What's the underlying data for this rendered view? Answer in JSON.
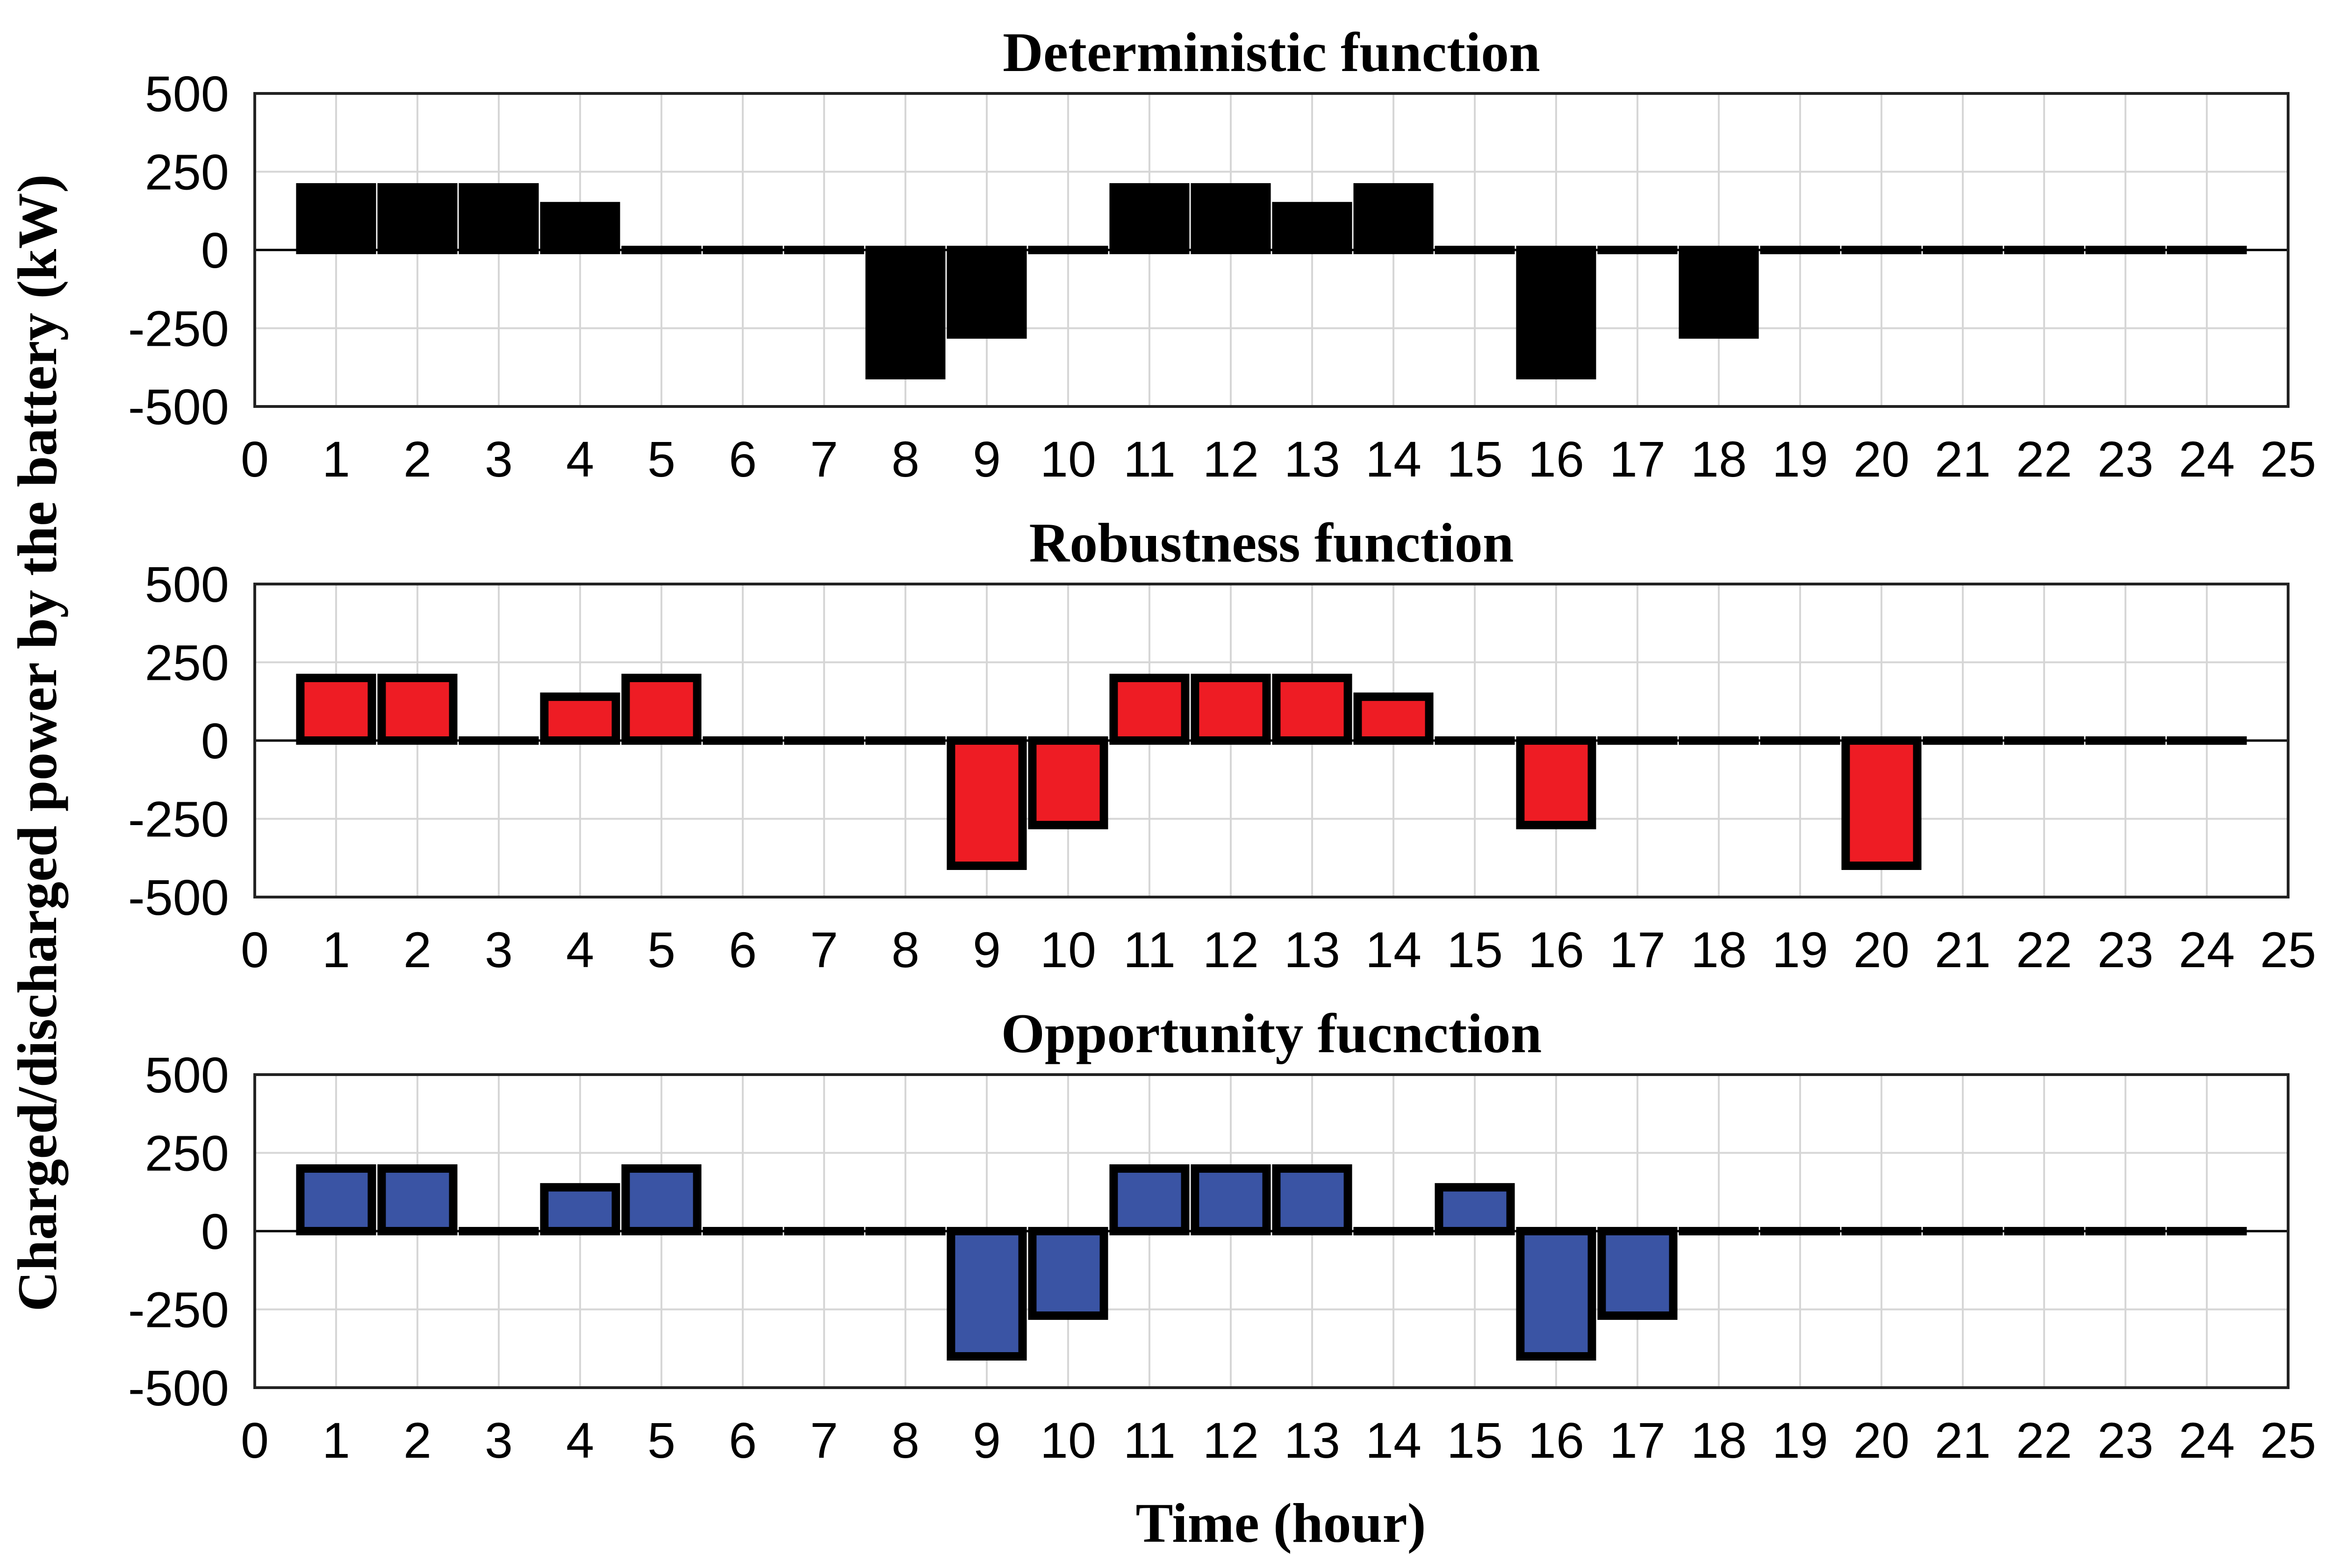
{
  "chart_data": [
    {
      "type": "bar",
      "title": "Deterministic function",
      "color": "#000000",
      "values": [
        200,
        200,
        200,
        140,
        0,
        0,
        0,
        -400,
        -270,
        0,
        200,
        200,
        140,
        200,
        0,
        -400,
        0,
        -270,
        0,
        0,
        0,
        0,
        0,
        0
      ],
      "ylim": [
        -500,
        500
      ]
    },
    {
      "type": "bar",
      "title": "Robustness function",
      "color": "#ee1c24",
      "values": [
        200,
        200,
        0,
        140,
        200,
        0,
        0,
        0,
        -400,
        -270,
        200,
        200,
        200,
        140,
        0,
        -270,
        0,
        0,
        0,
        -400,
        0,
        0,
        0,
        0
      ],
      "ylim": [
        -500,
        500
      ]
    },
    {
      "type": "bar",
      "title": "Opportunity fucnction",
      "color": "#3a54a4",
      "values": [
        200,
        200,
        0,
        140,
        200,
        0,
        0,
        0,
        -400,
        -270,
        200,
        200,
        200,
        0,
        140,
        -400,
        -270,
        0,
        0,
        0,
        0,
        0,
        0,
        0
      ],
      "ylim": [
        -500,
        500
      ]
    }
  ],
  "shared": {
    "categories": [
      "1",
      "2",
      "3",
      "4",
      "5",
      "6",
      "7",
      "8",
      "9",
      "10",
      "11",
      "12",
      "13",
      "14",
      "15",
      "16",
      "17",
      "18",
      "19",
      "20",
      "21",
      "22",
      "23",
      "24"
    ],
    "xticks": [
      "0",
      "1",
      "2",
      "3",
      "4",
      "5",
      "6",
      "7",
      "8",
      "9",
      "10",
      "11",
      "12",
      "13",
      "14",
      "15",
      "16",
      "17",
      "18",
      "19",
      "20",
      "21",
      "22",
      "23",
      "24",
      "25"
    ],
    "xlim": [
      0,
      25
    ],
    "yticks": [
      "500",
      "250",
      "0",
      "-250",
      "-500"
    ],
    "ylabel": "Charged/discharged power by the battery (kW)",
    "xlabel": "Time (hour)",
    "grid": true
  }
}
